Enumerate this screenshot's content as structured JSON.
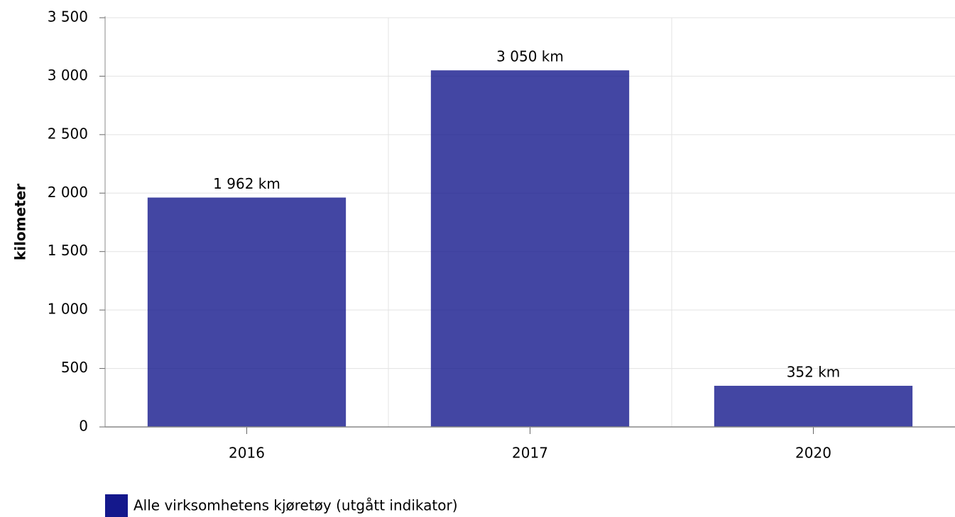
{
  "chart_data": {
    "type": "bar",
    "y_label": "kilometer",
    "categories": [
      "2016",
      "2017",
      "2020"
    ],
    "series": [
      {
        "name": "Alle virksomhetens kjøretøy (utgått indikator)",
        "color": "#14188c",
        "values": [
          1962,
          3050,
          352
        ],
        "value_labels": [
          "1 962 km",
          "3 050 km",
          "352 km"
        ]
      }
    ],
    "ylim": [
      0,
      3500
    ],
    "yticks": [
      0,
      500,
      {
        "value": 1000,
        "label": "1 000"
      },
      {
        "value": 1500,
        "label": "1 500"
      },
      {
        "value": 2000,
        "label": "2 000"
      },
      {
        "value": 2500,
        "label": "2 500"
      },
      {
        "value": 3000,
        "label": "3 000"
      },
      {
        "value": 3500,
        "label": "3 500"
      }
    ],
    "grid": true
  }
}
